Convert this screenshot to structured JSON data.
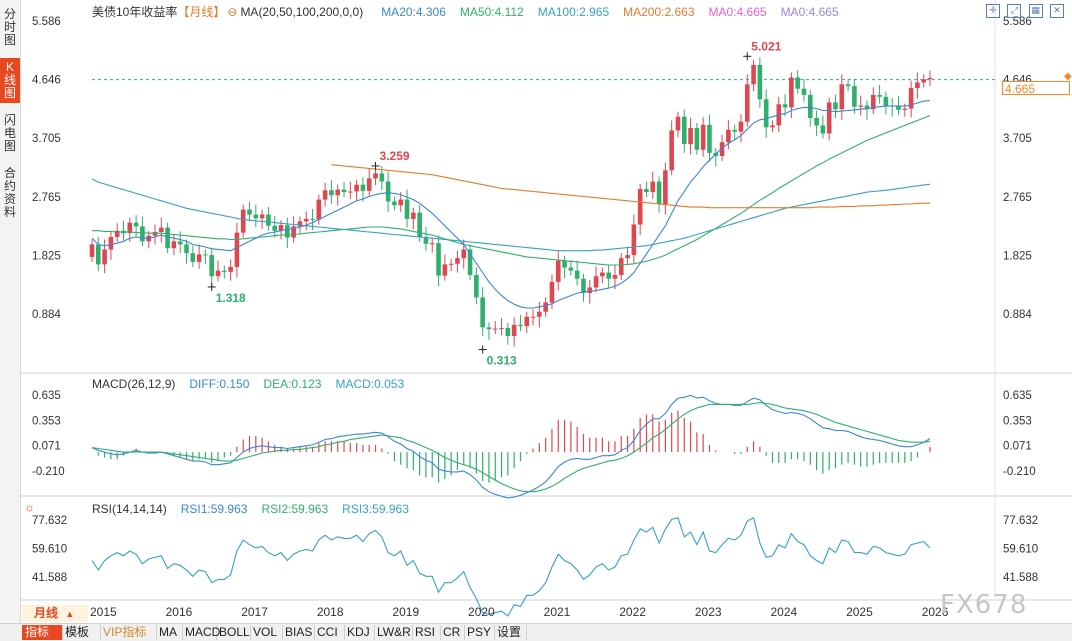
{
  "sidebar": {
    "tabs": [
      {
        "label": "分时图",
        "chars": [
          "分",
          "时",
          "图"
        ],
        "active": false
      },
      {
        "label": "K线图",
        "chars": [
          "K",
          "线",
          "图"
        ],
        "active": true
      },
      {
        "label": "闪电图",
        "chars": [
          "闪",
          "电",
          "图"
        ],
        "active": false
      },
      {
        "label": "合约资料",
        "chars": [
          "合",
          "约",
          "资",
          "料"
        ],
        "active": false
      }
    ]
  },
  "main_legend": {
    "instrument": "美债10年收益率",
    "period": "【月线】",
    "ma_label": "MA(20,50,100,200,0,0)",
    "ma_items": [
      {
        "text": "MA20:4.306",
        "color": "#3a86d8"
      },
      {
        "text": "MA50:4.112",
        "color": "#2fb06a"
      },
      {
        "text": "MA100:2.965",
        "color": "#36a0c8"
      },
      {
        "text": "MA200:2.663",
        "color": "#e87a2a"
      },
      {
        "text": "MA0:4.665",
        "color": "#e05fd8"
      },
      {
        "text": "MA0:4.665",
        "color": "#9a8ad8"
      }
    ]
  },
  "price_axis": {
    "ticks": [
      "5.586",
      "4.646",
      "3.705",
      "2.765",
      "1.825",
      "0.884"
    ],
    "current_price": "4.665",
    "current_line_value": 4.646
  },
  "annotations": {
    "high": "5.021",
    "mid_high": "3.259",
    "low_2016": "1.318",
    "low_2020": "0.313"
  },
  "macd": {
    "label": "MACD(26,12,9)",
    "items": [
      {
        "text": "DIFF:0.150",
        "color": "#3a86d8"
      },
      {
        "text": "DEA:0.123",
        "color": "#2fb06a"
      },
      {
        "text": "MACD:0.053",
        "color": "#36a0c8"
      }
    ],
    "ticks": [
      "0.635",
      "0.353",
      "0.071",
      "-0.210"
    ]
  },
  "rsi": {
    "label": "RSI(14,14,14)",
    "items": [
      {
        "text": "RSI1:59.963",
        "color": "#3a86d8"
      },
      {
        "text": "RSI2:59.963",
        "color": "#2fb06a"
      },
      {
        "text": "RSI3:59.963",
        "color": "#36a0c8"
      }
    ],
    "ticks": [
      "77.632",
      "59.610",
      "41.588"
    ]
  },
  "x_axis": {
    "years": [
      "2015",
      "2016",
      "2017",
      "2018",
      "2019",
      "2020",
      "2021",
      "2022",
      "2023",
      "2024",
      "2025",
      "2026"
    ]
  },
  "period_tab": "月线",
  "toolbar": {
    "buttons": [
      {
        "label": "指标",
        "active": true,
        "vip": false
      },
      {
        "label": "模板",
        "active": false,
        "vip": false
      },
      {
        "label": "VIP指标",
        "active": false,
        "vip": true
      },
      {
        "label": "MA",
        "active": false,
        "vip": false
      },
      {
        "label": "MACD",
        "active": false,
        "vip": false
      },
      {
        "label": "BOLL",
        "active": false,
        "vip": false
      },
      {
        "label": "VOL",
        "active": false,
        "vip": false
      },
      {
        "label": "BIAS",
        "active": false,
        "vip": false
      },
      {
        "label": "CCI",
        "active": false,
        "vip": false
      },
      {
        "label": "KDJ",
        "active": false,
        "vip": false
      },
      {
        "label": "LW&R",
        "active": false,
        "vip": false
      },
      {
        "label": "RSI",
        "active": false,
        "vip": false
      },
      {
        "label": "CR",
        "active": false,
        "vip": false
      },
      {
        "label": "PSY",
        "active": false,
        "vip": false
      },
      {
        "label": "设置",
        "active": false,
        "vip": false
      }
    ]
  },
  "watermark": "FX678",
  "colors": {
    "up": "#e04650",
    "down": "#2fb06a",
    "ma20": "#3a86d8",
    "ma50": "#2fb06a",
    "ma100": "#36a0c8",
    "ma200": "#e87a2a",
    "accent": "#e8471f"
  },
  "chart_data": {
    "type": "candlestick",
    "title": "美债10年收益率",
    "ylim": [
      0.313,
      5.586
    ],
    "years": [
      2015,
      2016,
      2017,
      2018,
      2019,
      2020,
      2021,
      2022,
      2023,
      2024,
      2025,
      2026
    ],
    "closes": [
      2.0,
      1.68,
      1.92,
      2.12,
      2.22,
      2.18,
      2.35,
      2.29,
      2.05,
      2.14,
      2.2,
      2.27,
      1.94,
      2.05,
      2.0,
      1.86,
      1.72,
      1.84,
      1.83,
      1.49,
      1.58,
      1.56,
      1.64,
      2.19,
      2.56,
      2.48,
      2.42,
      2.48,
      2.3,
      2.22,
      2.31,
      2.11,
      2.29,
      2.37,
      2.41,
      2.4,
      2.72,
      2.87,
      2.79,
      2.88,
      2.84,
      2.85,
      2.96,
      2.86,
      3.06,
      3.14,
      3.01,
      2.69,
      2.63,
      2.72,
      2.41,
      2.51,
      2.12,
      2.01,
      2.02,
      1.5,
      1.68,
      1.69,
      1.78,
      1.92,
      1.51,
      1.15,
      0.67,
      0.64,
      0.65,
      0.66,
      0.53,
      0.71,
      0.69,
      0.84,
      0.84,
      0.92,
      1.07,
      1.4,
      1.74,
      1.63,
      1.58,
      1.45,
      1.22,
      1.31,
      1.49,
      1.55,
      1.45,
      1.51,
      1.78,
      1.83,
      2.32,
      2.89,
      2.84,
      3.01,
      2.65,
      3.19,
      3.83,
      4.05,
      3.61,
      3.87,
      3.52,
      3.92,
      3.47,
      3.42,
      3.64,
      3.84,
      3.81,
      3.97,
      4.57,
      4.88,
      4.33,
      3.88,
      3.91,
      4.25,
      4.2,
      4.68,
      4.5,
      4.4,
      4.03,
      3.91,
      3.78,
      4.28,
      4.17,
      4.57,
      4.54,
      4.21,
      4.23,
      4.17,
      4.4,
      4.37,
      4.23,
      4.22,
      4.16,
      4.18,
      4.51,
      4.6,
      4.65,
      4.67
    ],
    "ma20": [
      2.1,
      2.0,
      1.98,
      2.0,
      2.02,
      2.05,
      2.1,
      2.12,
      2.1,
      2.1,
      2.12,
      2.15,
      2.12,
      2.1,
      2.08,
      2.05,
      2.0,
      1.98,
      1.96,
      1.93,
      1.92,
      1.91,
      1.9,
      1.95,
      2.0,
      2.05,
      2.1,
      2.15,
      2.18,
      2.2,
      2.22,
      2.24,
      2.26,
      2.28,
      2.31,
      2.35,
      2.4,
      2.45,
      2.5,
      2.55,
      2.6,
      2.65,
      2.7,
      2.73,
      2.77,
      2.8,
      2.82,
      2.83,
      2.82,
      2.8,
      2.76,
      2.72,
      2.66,
      2.58,
      2.5,
      2.4,
      2.3,
      2.2,
      2.1,
      2.0,
      1.85,
      1.7,
      1.55,
      1.4,
      1.28,
      1.18,
      1.1,
      1.04,
      1.0,
      0.98,
      0.98,
      1.0,
      1.02,
      1.05,
      1.1,
      1.14,
      1.18,
      1.22,
      1.24,
      1.25,
      1.26,
      1.28,
      1.3,
      1.33,
      1.38,
      1.45,
      1.55,
      1.7,
      1.85,
      2.0,
      2.15,
      2.3,
      2.5,
      2.7,
      2.85,
      3.0,
      3.12,
      3.25,
      3.35,
      3.45,
      3.55,
      3.62,
      3.68,
      3.75,
      3.85,
      3.95,
      4.0,
      4.02,
      4.05,
      4.08,
      4.1,
      4.15,
      4.18,
      4.2,
      4.2,
      4.18,
      4.15,
      4.15,
      4.13,
      4.14,
      4.15,
      4.16,
      4.17,
      4.18,
      4.2,
      4.21,
      4.22,
      4.22,
      4.22,
      4.22,
      4.24,
      4.27,
      4.3,
      4.31
    ],
    "ma50": [
      2.22,
      2.22,
      2.21,
      2.21,
      2.2,
      2.2,
      2.2,
      2.19,
      2.19,
      2.18,
      2.18,
      2.18,
      2.17,
      2.16,
      2.15,
      2.14,
      2.13,
      2.12,
      2.11,
      2.1,
      2.09,
      2.09,
      2.08,
      2.08,
      2.09,
      2.1,
      2.11,
      2.12,
      2.13,
      2.14,
      2.15,
      2.15,
      2.16,
      2.17,
      2.18,
      2.19,
      2.2,
      2.21,
      2.22,
      2.23,
      2.24,
      2.25,
      2.26,
      2.27,
      2.28,
      2.28,
      2.28,
      2.27,
      2.26,
      2.25,
      2.23,
      2.21,
      2.19,
      2.17,
      2.15,
      2.12,
      2.09,
      2.06,
      2.03,
      2.0,
      1.98,
      1.96,
      1.94,
      1.92,
      1.9,
      1.88,
      1.86,
      1.84,
      1.82,
      1.8,
      1.79,
      1.78,
      1.77,
      1.76,
      1.75,
      1.74,
      1.73,
      1.72,
      1.71,
      1.7,
      1.69,
      1.68,
      1.67,
      1.67,
      1.67,
      1.68,
      1.69,
      1.71,
      1.73,
      1.76,
      1.79,
      1.83,
      1.88,
      1.93,
      1.98,
      2.03,
      2.08,
      2.14,
      2.2,
      2.26,
      2.32,
      2.38,
      2.44,
      2.5,
      2.57,
      2.64,
      2.71,
      2.77,
      2.83,
      2.9,
      2.96,
      3.02,
      3.08,
      3.14,
      3.2,
      3.26,
      3.31,
      3.37,
      3.42,
      3.47,
      3.52,
      3.57,
      3.62,
      3.67,
      3.71,
      3.75,
      3.79,
      3.83,
      3.87,
      3.91,
      3.95,
      3.99,
      4.03,
      4.07
    ],
    "ma100": [
      3.05,
      3.0,
      2.97,
      2.94,
      2.91,
      2.88,
      2.85,
      2.82,
      2.79,
      2.76,
      2.73,
      2.7,
      2.67,
      2.64,
      2.61,
      2.58,
      2.56,
      2.54,
      2.52,
      2.5,
      2.48,
      2.46,
      2.44,
      2.42,
      2.4,
      2.39,
      2.38,
      2.37,
      2.36,
      2.35,
      2.34,
      2.33,
      2.32,
      2.31,
      2.3,
      2.29,
      2.28,
      2.27,
      2.26,
      2.25,
      2.24,
      2.23,
      2.22,
      2.21,
      2.2,
      2.19,
      2.18,
      2.17,
      2.16,
      2.15,
      2.14,
      2.13,
      2.12,
      2.11,
      2.1,
      2.09,
      2.08,
      2.07,
      2.06,
      2.05,
      2.04,
      2.03,
      2.02,
      2.01,
      2.0,
      1.99,
      1.98,
      1.97,
      1.96,
      1.95,
      1.94,
      1.93,
      1.92,
      1.91,
      1.9,
      1.9,
      1.9,
      1.9,
      1.9,
      1.9,
      1.91,
      1.91,
      1.92,
      1.93,
      1.94,
      1.95,
      1.96,
      1.97,
      1.98,
      2.0,
      2.02,
      2.04,
      2.06,
      2.08,
      2.1,
      2.13,
      2.16,
      2.19,
      2.22,
      2.25,
      2.28,
      2.31,
      2.34,
      2.37,
      2.4,
      2.43,
      2.46,
      2.49,
      2.52,
      2.55,
      2.58,
      2.6,
      2.62,
      2.64,
      2.66,
      2.68,
      2.7,
      2.72,
      2.74,
      2.76,
      2.78,
      2.8,
      2.82,
      2.84,
      2.85,
      2.86,
      2.87,
      2.88,
      2.9,
      2.91,
      2.93,
      2.94,
      2.955,
      2.965
    ],
    "ma200": [
      null,
      null,
      null,
      null,
      null,
      null,
      null,
      null,
      null,
      null,
      null,
      null,
      null,
      null,
      null,
      null,
      null,
      null,
      null,
      null,
      null,
      null,
      null,
      null,
      null,
      null,
      null,
      null,
      null,
      null,
      null,
      null,
      null,
      null,
      null,
      null,
      null,
      null,
      3.28,
      3.27,
      3.26,
      3.25,
      3.24,
      3.23,
      3.22,
      3.21,
      3.2,
      3.19,
      3.18,
      3.17,
      3.16,
      3.15,
      3.14,
      3.13,
      3.12,
      3.1,
      3.08,
      3.06,
      3.04,
      3.02,
      3.0,
      2.98,
      2.96,
      2.94,
      2.92,
      2.9,
      2.89,
      2.88,
      2.87,
      2.86,
      2.85,
      2.84,
      2.83,
      2.82,
      2.81,
      2.8,
      2.79,
      2.78,
      2.77,
      2.76,
      2.75,
      2.74,
      2.73,
      2.72,
      2.71,
      2.7,
      2.69,
      2.68,
      2.67,
      2.66,
      2.65,
      2.64,
      2.63,
      2.62,
      2.61,
      2.6,
      2.6,
      2.6,
      2.59,
      2.59,
      2.59,
      2.59,
      2.59,
      2.59,
      2.59,
      2.59,
      2.59,
      2.59,
      2.59,
      2.59,
      2.59,
      2.59,
      2.59,
      2.59,
      2.59,
      2.6,
      2.6,
      2.6,
      2.6,
      2.61,
      2.61,
      2.61,
      2.62,
      2.62,
      2.62,
      2.63,
      2.63,
      2.64,
      2.64,
      2.65,
      2.65,
      2.66,
      2.66,
      2.663
    ],
    "macd_diff": [
      0.05,
      0.02,
      0.0,
      -0.02,
      -0.03,
      -0.02,
      0.0,
      0.02,
      0.0,
      -0.01,
      -0.01,
      0.0,
      -0.02,
      -0.04,
      -0.06,
      -0.08,
      -0.1,
      -0.1,
      -0.11,
      -0.14,
      -0.14,
      -0.13,
      -0.12,
      -0.06,
      0.0,
      0.04,
      0.06,
      0.07,
      0.06,
      0.05,
      0.05,
      0.04,
      0.05,
      0.06,
      0.07,
      0.08,
      0.11,
      0.14,
      0.15,
      0.17,
      0.18,
      0.19,
      0.2,
      0.2,
      0.21,
      0.22,
      0.21,
      0.17,
      0.12,
      0.09,
      0.04,
      0.01,
      -0.05,
      -0.09,
      -0.12,
      -0.19,
      -0.21,
      -0.22,
      -0.22,
      -0.21,
      -0.25,
      -0.31,
      -0.39,
      -0.44,
      -0.47,
      -0.49,
      -0.51,
      -0.5,
      -0.48,
      -0.45,
      -0.42,
      -0.38,
      -0.33,
      -0.25,
      -0.16,
      -0.11,
      -0.08,
      -0.07,
      -0.08,
      -0.08,
      -0.06,
      -0.04,
      -0.04,
      -0.03,
      0.02,
      0.05,
      0.13,
      0.24,
      0.31,
      0.37,
      0.37,
      0.43,
      0.53,
      0.6,
      0.61,
      0.63,
      0.6,
      0.61,
      0.57,
      0.54,
      0.53,
      0.53,
      0.52,
      0.52,
      0.56,
      0.6,
      0.58,
      0.52,
      0.47,
      0.45,
      0.43,
      0.44,
      0.43,
      0.41,
      0.37,
      0.32,
      0.27,
      0.26,
      0.24,
      0.24,
      0.23,
      0.2,
      0.17,
      0.15,
      0.14,
      0.13,
      0.11,
      0.09,
      0.07,
      0.06,
      0.06,
      0.08,
      0.11,
      0.15
    ],
    "macd_dea": [
      0.05,
      0.04,
      0.03,
      0.02,
      0.01,
      0.0,
      0.0,
      0.0,
      0.0,
      0.0,
      0.0,
      0.0,
      -0.01,
      -0.02,
      -0.03,
      -0.04,
      -0.05,
      -0.06,
      -0.07,
      -0.08,
      -0.09,
      -0.1,
      -0.1,
      -0.09,
      -0.07,
      -0.05,
      -0.03,
      -0.01,
      0.0,
      0.01,
      0.02,
      0.02,
      0.03,
      0.03,
      0.04,
      0.05,
      0.06,
      0.08,
      0.09,
      0.11,
      0.12,
      0.14,
      0.15,
      0.16,
      0.17,
      0.18,
      0.19,
      0.18,
      0.17,
      0.16,
      0.13,
      0.11,
      0.08,
      0.05,
      0.02,
      -0.02,
      -0.06,
      -0.09,
      -0.12,
      -0.14,
      -0.16,
      -0.19,
      -0.23,
      -0.27,
      -0.31,
      -0.35,
      -0.38,
      -0.41,
      -0.43,
      -0.44,
      -0.44,
      -0.43,
      -0.41,
      -0.38,
      -0.34,
      -0.29,
      -0.25,
      -0.21,
      -0.18,
      -0.16,
      -0.14,
      -0.12,
      -0.1,
      -0.09,
      -0.07,
      -0.04,
      0.0,
      0.05,
      0.1,
      0.16,
      0.2,
      0.25,
      0.31,
      0.37,
      0.42,
      0.46,
      0.49,
      0.51,
      0.53,
      0.53,
      0.53,
      0.53,
      0.53,
      0.53,
      0.53,
      0.54,
      0.55,
      0.54,
      0.53,
      0.51,
      0.49,
      0.48,
      0.47,
      0.46,
      0.44,
      0.42,
      0.39,
      0.36,
      0.33,
      0.31,
      0.29,
      0.27,
      0.25,
      0.23,
      0.21,
      0.19,
      0.17,
      0.15,
      0.13,
      0.12,
      0.11,
      0.11,
      0.11,
      0.12
    ],
    "rsi": [
      52,
      46,
      52,
      55,
      57,
      55,
      58,
      56,
      50,
      53,
      54,
      55,
      47,
      50,
      49,
      46,
      42,
      46,
      45,
      38,
      40,
      40,
      43,
      58,
      65,
      62,
      60,
      61,
      57,
      55,
      57,
      52,
      56,
      58,
      59,
      58,
      65,
      68,
      65,
      67,
      66,
      66,
      68,
      64,
      69,
      71,
      67,
      57,
      55,
      58,
      49,
      52,
      44,
      42,
      42,
      32,
      38,
      38,
      41,
      45,
      35,
      28,
      19,
      18,
      19,
      20,
      17,
      24,
      23,
      30,
      30,
      33,
      38,
      48,
      56,
      52,
      50,
      46,
      40,
      43,
      48,
      50,
      46,
      48,
      55,
      56,
      65,
      72,
      70,
      73,
      63,
      72,
      78,
      79,
      67,
      70,
      62,
      70,
      58,
      57,
      62,
      66,
      65,
      68,
      77,
      79,
      63,
      54,
      55,
      62,
      60,
      69,
      64,
      62,
      55,
      52,
      50,
      60,
      57,
      65,
      64,
      57,
      57,
      56,
      61,
      60,
      57,
      56,
      55,
      56,
      62,
      63,
      64,
      60
    ]
  }
}
